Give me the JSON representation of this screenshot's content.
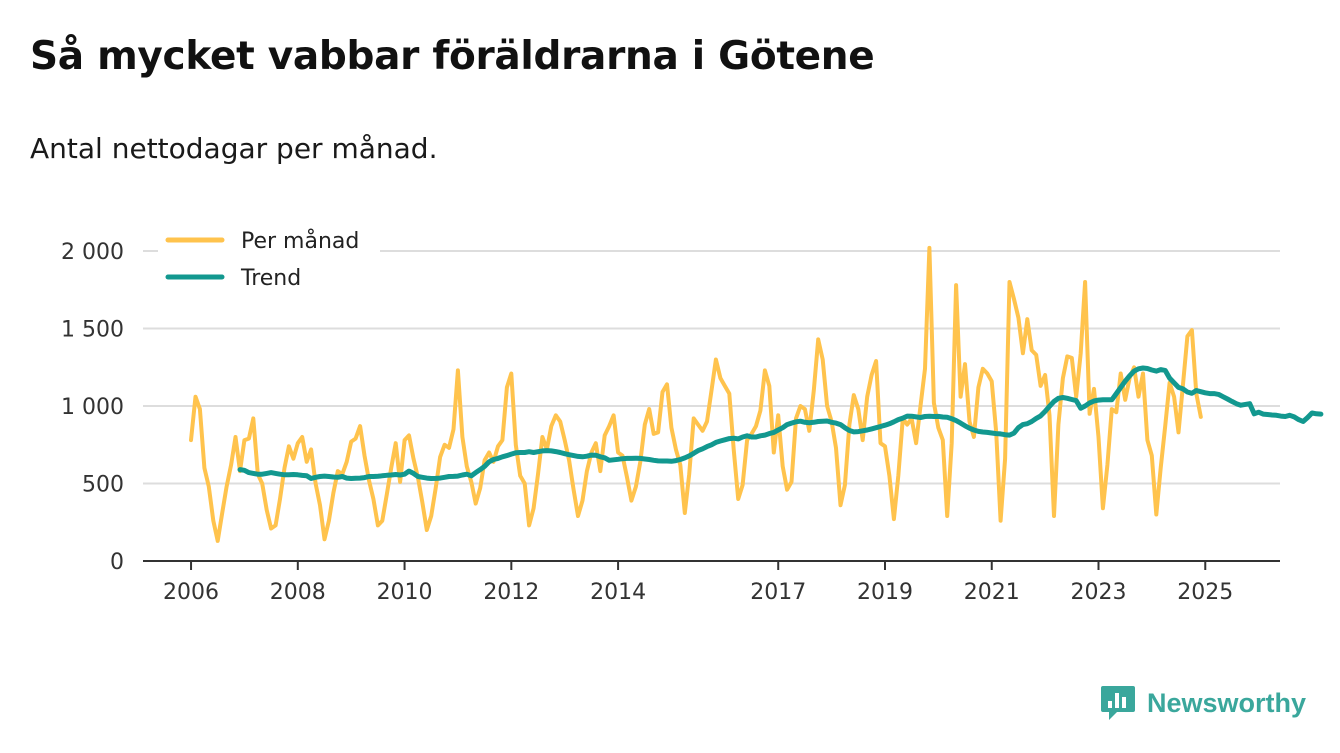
{
  "title": "Så mycket vabbar föräldrarna i Götene",
  "subtitle": "Antal nettodagar per månad.",
  "brand": {
    "name": "Newsworthy",
    "icon": "newsworthy-logo-icon",
    "color": "#3aa79c"
  },
  "colors": {
    "monthly": "#ffc34d",
    "trend": "#12988f",
    "grid": "#dddddd",
    "axis": "#333333"
  },
  "chart_data": {
    "type": "line",
    "title": "Så mycket vabbar föräldrarna i Götene",
    "subtitle": "Antal nettodagar per månad.",
    "xlabel": "",
    "ylabel": "",
    "x_start": 2006.0,
    "x_step": 0.08333,
    "xlim": [
      2005.1,
      2026.4
    ],
    "ylim": [
      0,
      2000
    ],
    "yticks": [
      0,
      500,
      1000,
      1500,
      2000
    ],
    "ytick_labels": [
      "0",
      "500",
      "1 000",
      "1 500",
      "2 000"
    ],
    "xticks": [
      2006,
      2008,
      2010,
      2012,
      2014,
      2017,
      2019,
      2021,
      2023,
      2025
    ],
    "xtick_labels": [
      "2006",
      "2008",
      "2010",
      "2012",
      "2014",
      "2017",
      "2019",
      "2021",
      "2023",
      "2025"
    ],
    "grid": true,
    "legend_position": "top-left",
    "series": [
      {
        "name": "Per månad",
        "color": "#ffc34d",
        "values": [
          780,
          1060,
          980,
          600,
          480,
          260,
          130,
          310,
          480,
          620,
          800,
          580,
          780,
          790,
          920,
          560,
          500,
          330,
          210,
          230,
          400,
          600,
          740,
          660,
          760,
          800,
          640,
          720,
          500,
          360,
          140,
          260,
          440,
          580,
          560,
          640,
          770,
          790,
          870,
          680,
          520,
          400,
          230,
          260,
          430,
          600,
          760,
          510,
          780,
          810,
          660,
          540,
          380,
          200,
          290,
          470,
          670,
          750,
          730,
          850,
          1230,
          800,
          610,
          510,
          370,
          470,
          650,
          700,
          640,
          740,
          780,
          1120,
          1210,
          750,
          550,
          500,
          230,
          340,
          560,
          800,
          720,
          870,
          940,
          900,
          780,
          650,
          460,
          290,
          390,
          580,
          700,
          760,
          580,
          810,
          870,
          940,
          700,
          680,
          540,
          390,
          480,
          640,
          880,
          980,
          820,
          830,
          1090,
          1140,
          860,
          720,
          620,
          310,
          560,
          920,
          880,
          840,
          900,
          1100,
          1300,
          1180,
          1130,
          1080,
          720,
          400,
          490,
          780,
          820,
          870,
          970,
          1230,
          1130,
          700,
          940,
          610,
          460,
          510,
          920,
          1000,
          980,
          840,
          1100,
          1430,
          1300,
          1000,
          900,
          730,
          360,
          490,
          880,
          1070,
          980,
          780,
          1060,
          1200,
          1290,
          760,
          740,
          550,
          270,
          550,
          920,
          880,
          920,
          760,
          1000,
          1240,
          2020,
          1020,
          860,
          780,
          290,
          760,
          1780,
          1060,
          1270,
          900,
          800,
          1120,
          1240,
          1210,
          1160,
          830,
          260,
          660,
          1800,
          1690,
          1570,
          1340,
          1560,
          1360,
          1330,
          1130,
          1200,
          940,
          290,
          880,
          1180,
          1320,
          1310,
          1060,
          1340,
          1800,
          950,
          1110,
          800,
          340,
          620,
          980,
          960,
          1210,
          1040,
          1180,
          1250,
          1060,
          1210,
          780,
          680,
          300,
          600,
          870,
          1150,
          1060,
          830,
          1140,
          1450,
          1490,
          1080,
          930
        ]
      },
      {
        "name": "Trend",
        "color": "#12988f",
        "start_index": 11,
        "values": [
          590,
          585,
          570,
          565,
          560,
          560,
          565,
          570,
          565,
          560,
          556,
          556,
          558,
          556,
          552,
          550,
          532,
          540,
          545,
          548,
          545,
          542,
          540,
          545,
          535,
          532,
          534,
          535,
          538,
          545,
          545,
          547,
          550,
          553,
          555,
          558,
          555,
          560,
          580,
          565,
          545,
          540,
          535,
          532,
          533,
          535,
          540,
          545,
          546,
          548,
          555,
          560,
          550,
          570,
          590,
          610,
          640,
          655,
          662,
          672,
          680,
          690,
          698,
          700,
          700,
          705,
          700,
          705,
          710,
          712,
          710,
          706,
          700,
          692,
          686,
          680,
          675,
          672,
          676,
          683,
          682,
          672,
          666,
          650,
          653,
          656,
          660,
          662,
          662,
          663,
          662,
          658,
          655,
          650,
          646,
          645,
          645,
          643,
          648,
          655,
          665,
          678,
          695,
          712,
          724,
          738,
          750,
          765,
          774,
          782,
          790,
          792,
          788,
          800,
          808,
          800,
          800,
          808,
          812,
          822,
          830,
          845,
          860,
          880,
          890,
          898,
          902,
          895,
          892,
          895,
          900,
          902,
          903,
          895,
          890,
          880,
          860,
          842,
          833,
          835,
          840,
          845,
          852,
          860,
          868,
          876,
          885,
          898,
          912,
          922,
          935,
          934,
          930,
          926,
          932,
          934,
          932,
          933,
          929,
          928,
          918,
          906,
          890,
          872,
          857,
          845,
          836,
          832,
          830,
          826,
          822,
          820,
          815,
          812,
          825,
          860,
          880,
          886,
          900,
          920,
          936,
          965,
          998,
          1030,
          1050,
          1055,
          1050,
          1042,
          1035,
          985,
          1000,
          1020,
          1032,
          1038,
          1040,
          1040,
          1040,
          1080,
          1120,
          1160,
          1195,
          1225,
          1240,
          1245,
          1242,
          1232,
          1225,
          1235,
          1230,
          1180,
          1150,
          1120,
          1110,
          1090,
          1082,
          1100,
          1092,
          1085,
          1080,
          1080,
          1075,
          1060,
          1045,
          1030,
          1015,
          1005,
          1010,
          1015,
          950,
          960,
          948,
          945,
          942,
          940,
          935,
          932,
          940,
          930,
          912,
          900,
          925,
          955,
          950,
          948
        ]
      }
    ]
  }
}
